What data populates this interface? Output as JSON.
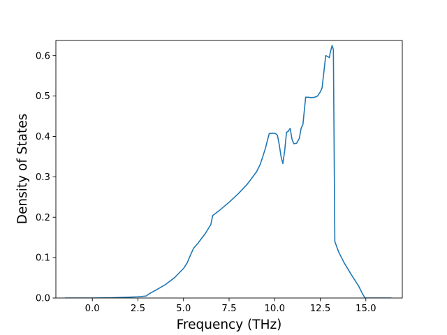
{
  "chart_data": {
    "type": "line",
    "title": "",
    "xlabel": "Frequency (THz)",
    "ylabel": "Density of States",
    "xlim": [
      -2.0,
      17.0
    ],
    "ylim": [
      0.0,
      0.6375
    ],
    "xticks": [
      0.0,
      2.5,
      5.0,
      7.5,
      10.0,
      12.5,
      15.0
    ],
    "xtick_labels": [
      "0.0",
      "2.5",
      "5.0",
      "7.5",
      "10.0",
      "12.5",
      "15.0"
    ],
    "yticks": [
      0.0,
      0.1,
      0.2,
      0.3,
      0.4,
      0.5,
      0.6
    ],
    "ytick_labels": [
      "0.0",
      "0.1",
      "0.2",
      "0.3",
      "0.4",
      "0.5",
      "0.6"
    ],
    "grid": false,
    "legend": "none",
    "series": [
      {
        "color": "#1f77b4",
        "x": [
          -1.5,
          0.0,
          1.0,
          2.0,
          2.5,
          2.95,
          3.1,
          3.5,
          4.0,
          4.5,
          5.0,
          5.2,
          5.4,
          5.55,
          5.8,
          6.2,
          6.5,
          6.6,
          7.0,
          7.5,
          8.0,
          8.5,
          9.0,
          9.2,
          9.35,
          9.5,
          9.7,
          9.9,
          10.05,
          10.15,
          10.25,
          10.35,
          10.45,
          10.55,
          10.65,
          10.75,
          10.85,
          10.95,
          11.05,
          11.2,
          11.35,
          11.45,
          11.55,
          11.7,
          11.85,
          12.0,
          12.2,
          12.35,
          12.5,
          12.6,
          12.7,
          12.8,
          12.9,
          13.0,
          13.05,
          13.15,
          13.22,
          13.3,
          13.5,
          13.8,
          14.2,
          14.6,
          14.8,
          14.95,
          15.1,
          16.0,
          16.4
        ],
        "y": [
          0.0,
          0.0,
          0.0005,
          0.002,
          0.003,
          0.005,
          0.01,
          0.02,
          0.033,
          0.05,
          0.073,
          0.087,
          0.108,
          0.123,
          0.136,
          0.16,
          0.182,
          0.204,
          0.218,
          0.237,
          0.258,
          0.282,
          0.312,
          0.33,
          0.35,
          0.372,
          0.407,
          0.408,
          0.407,
          0.403,
          0.38,
          0.35,
          0.333,
          0.365,
          0.41,
          0.413,
          0.42,
          0.393,
          0.382,
          0.383,
          0.395,
          0.42,
          0.43,
          0.497,
          0.497,
          0.496,
          0.497,
          0.5,
          0.51,
          0.52,
          0.56,
          0.6,
          0.598,
          0.595,
          0.608,
          0.625,
          0.615,
          0.14,
          0.115,
          0.088,
          0.058,
          0.03,
          0.012,
          0.0,
          0.0,
          0.0,
          0.0
        ]
      }
    ]
  }
}
